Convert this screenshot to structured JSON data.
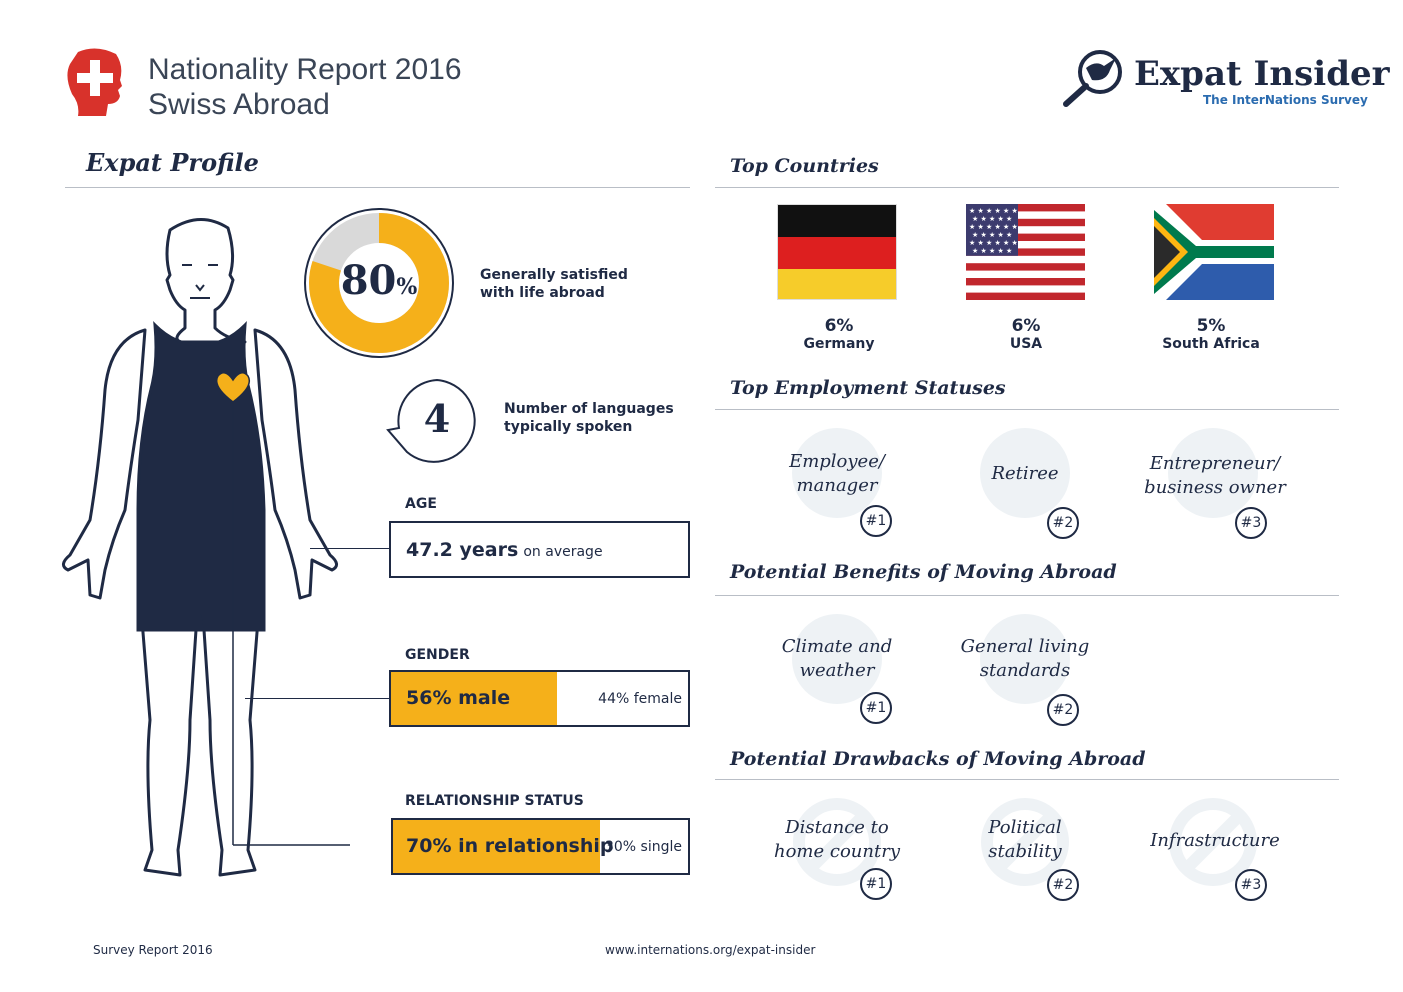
{
  "header": {
    "title_line1": "Nationality Report 2016",
    "title_line2": "Swiss Abroad",
    "brand_name": "Expat Insider",
    "brand_tagline": "The InterNations Survey"
  },
  "profile": {
    "section_title": "Expat Profile",
    "satisfaction_value": "80",
    "satisfaction_unit": "%",
    "satisfaction_fraction": 0.8,
    "satisfaction_label_1": "Generally satisfied",
    "satisfaction_label_2": "with life abroad",
    "languages_value": "4",
    "languages_label_1": "Number of languages",
    "languages_label_2": "typically spoken",
    "age_title": "AGE",
    "age_value": "47.2 years",
    "age_suffix": "on average",
    "gender_title": "GENDER",
    "gender_main": "56% male",
    "gender_other": "44% female",
    "gender_fraction": 0.56,
    "relationship_title": "RELATIONSHIP STATUS",
    "relationship_main": "70% in relationship",
    "relationship_other": "30% single",
    "relationship_fraction": 0.7
  },
  "countries": {
    "section_title": "Top Countries",
    "items": [
      {
        "pct": "6%",
        "name": "Germany"
      },
      {
        "pct": "6%",
        "name": "USA"
      },
      {
        "pct": "5%",
        "name": "South Africa"
      }
    ]
  },
  "employment": {
    "section_title": "Top Employment Statuses",
    "items": [
      {
        "label_1": "Employee/",
        "label_2": "manager",
        "rank": "#1"
      },
      {
        "label_1": "Retiree",
        "label_2": "",
        "rank": "#2"
      },
      {
        "label_1": "Entrepreneur/",
        "label_2": "business owner",
        "rank": "#3"
      }
    ]
  },
  "benefits": {
    "section_title": "Potential Benefits of Moving Abroad",
    "items": [
      {
        "label_1": "Climate and",
        "label_2": "weather",
        "rank": "#1"
      },
      {
        "label_1": "General living",
        "label_2": "standards",
        "rank": "#2"
      }
    ]
  },
  "drawbacks": {
    "section_title": "Potential Drawbacks of Moving Abroad",
    "items": [
      {
        "label_1": "Distance to",
        "label_2": "home country",
        "rank": "#1"
      },
      {
        "label_1": "Political",
        "label_2": "stability",
        "rank": "#2"
      },
      {
        "label_1": "Infrastructure",
        "label_2": "",
        "rank": "#3"
      }
    ]
  },
  "footer": {
    "left": "Survey Report 2016",
    "center": "www.internations.org/expat-insider"
  },
  "colors": {
    "navy": "#1f2a44",
    "accent_yellow": "#f5b01a",
    "swiss_red": "#d8322b",
    "brand_blue": "#2b6cb0"
  }
}
